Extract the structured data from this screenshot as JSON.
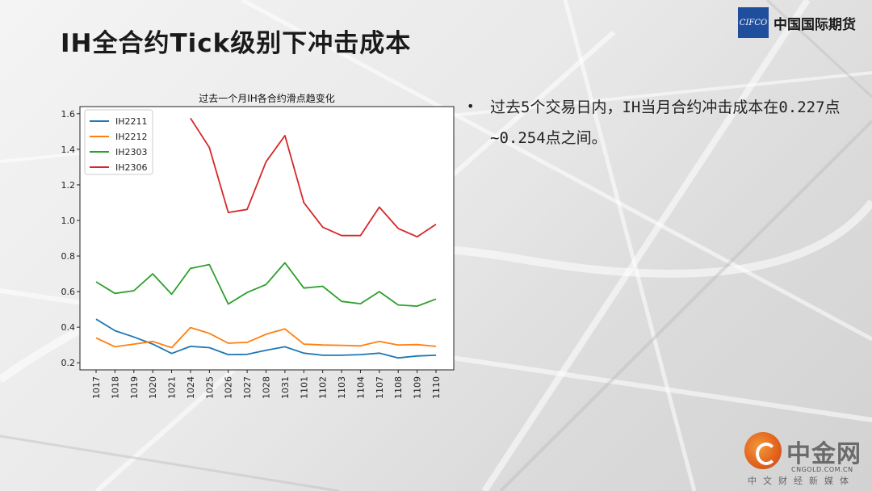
{
  "slide": {
    "title": "IH全合约Tick级别下冲击成本",
    "logo_mark": "CIFCO",
    "logo_name": "中国国际期货",
    "bullet": "过去5个交易日内，IH当月合约冲击成本在0.227点~0.254点之间。"
  },
  "watermark": {
    "name": "中金网",
    "url": "CNGOLD.COM.CN",
    "tagline": "中文财经新媒体"
  },
  "colors": {
    "IH2211": "#1f77b4",
    "IH2212": "#ff7f0e",
    "IH2303": "#2ca02c",
    "IH2306": "#d62728"
  },
  "chart_data": {
    "type": "line",
    "title": "过去一个月IH各合约滑点趋变化",
    "xlabel": "",
    "ylabel": "",
    "categories": [
      "1017",
      "1018",
      "1019",
      "1020",
      "1021",
      "1024",
      "1025",
      "1026",
      "1027",
      "1028",
      "1031",
      "1101",
      "1102",
      "1103",
      "1104",
      "1107",
      "1108",
      "1109",
      "1110"
    ],
    "ylim": [
      0.16,
      1.64
    ],
    "yticks": [
      0.2,
      0.4,
      0.6,
      0.8,
      1.0,
      1.2,
      1.4,
      1.6
    ],
    "ytick_labels": [
      "0.2",
      "0.4",
      "0.6",
      "0.8",
      "1.0",
      "1.2",
      "1.4",
      "1.6"
    ],
    "legend_position": "top-left",
    "grid": false,
    "series": [
      {
        "name": "IH2211",
        "values": [
          0.445,
          0.38,
          0.345,
          0.305,
          0.252,
          0.292,
          0.285,
          0.246,
          0.247,
          0.27,
          0.29,
          0.254,
          0.242,
          0.242,
          0.246,
          0.254,
          0.227,
          0.238,
          0.242
        ]
      },
      {
        "name": "IH2212",
        "values": [
          0.34,
          0.29,
          0.305,
          0.32,
          0.285,
          0.398,
          0.365,
          0.31,
          0.315,
          0.36,
          0.39,
          0.305,
          0.3,
          0.298,
          0.295,
          0.32,
          0.3,
          0.302,
          0.292
        ]
      },
      {
        "name": "IH2303",
        "values": [
          0.655,
          0.59,
          0.605,
          0.7,
          0.585,
          0.73,
          0.752,
          0.53,
          0.595,
          0.64,
          0.762,
          0.62,
          0.63,
          0.545,
          0.532,
          0.6,
          0.525,
          0.518,
          0.558
        ]
      },
      {
        "name": "IH2306",
        "values": [
          null,
          null,
          null,
          null,
          null,
          1.575,
          1.41,
          1.045,
          1.062,
          1.33,
          1.477,
          1.1,
          0.962,
          0.915,
          0.915,
          1.075,
          0.955,
          0.908,
          0.978
        ]
      }
    ]
  }
}
